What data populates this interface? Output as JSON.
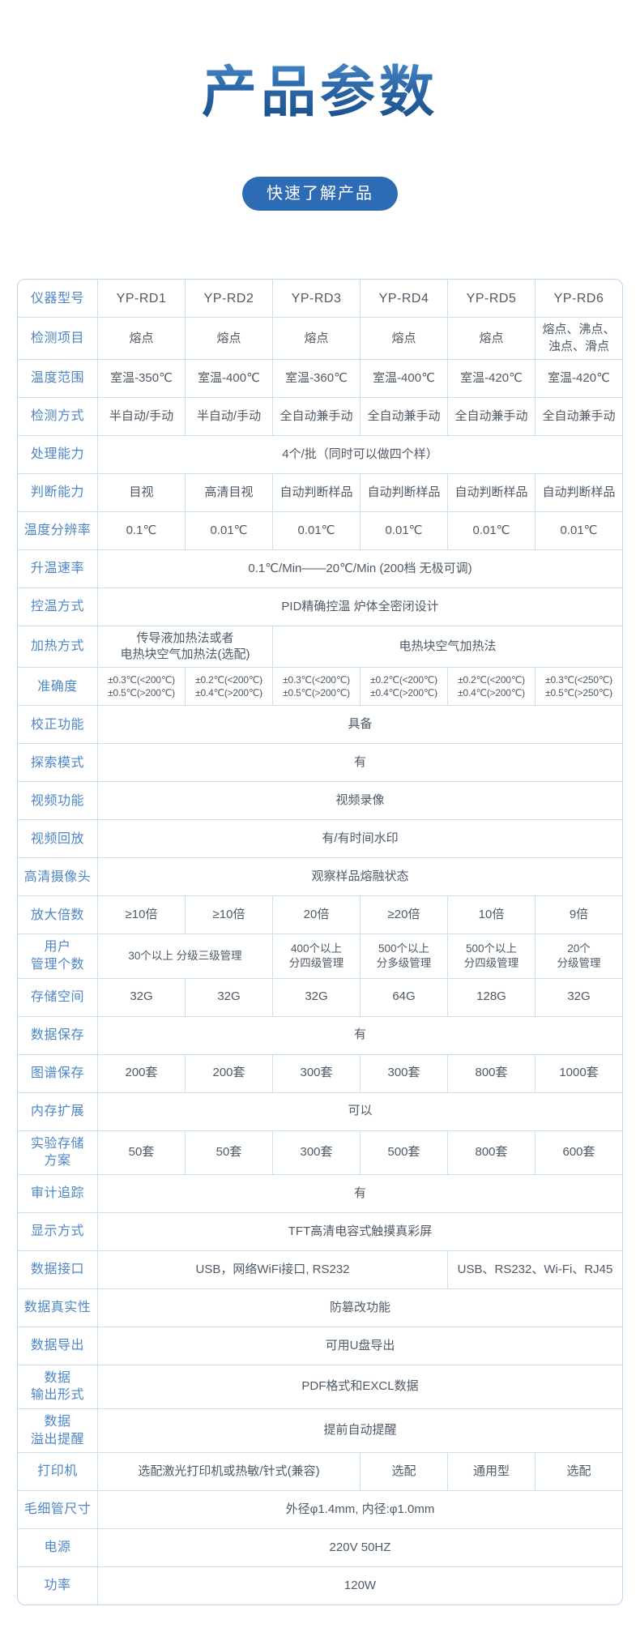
{
  "page": {
    "title": "产品参数",
    "badge": "快速了解产品"
  },
  "colors": {
    "title_gradient_top": "#4a8cc9",
    "title_gradient_bottom": "#174a85",
    "badge_background": "#2d6cb4",
    "badge_text": "#ffffff",
    "table_border": "#c9dff2",
    "label_text": "#4e86c4",
    "value_text": "#4e5a66"
  },
  "table": {
    "rows": [
      {
        "label": "仪器型号",
        "cls": "hdr",
        "cells": [
          {
            "t": "YP-RD1"
          },
          {
            "t": "YP-RD2"
          },
          {
            "t": "YP-RD3"
          },
          {
            "t": "YP-RD4"
          },
          {
            "t": "YP-RD5"
          },
          {
            "t": "YP-RD6"
          }
        ]
      },
      {
        "label": "检测项目",
        "cells": [
          {
            "t": "熔点"
          },
          {
            "t": "熔点"
          },
          {
            "t": "熔点"
          },
          {
            "t": "熔点"
          },
          {
            "t": "熔点"
          },
          {
            "t": "熔点、沸点、\n浊点、滑点"
          }
        ]
      },
      {
        "label": "温度范围",
        "cells": [
          {
            "t": "室温-350℃"
          },
          {
            "t": "室温-400℃"
          },
          {
            "t": "室温-360℃"
          },
          {
            "t": "室温-400℃"
          },
          {
            "t": "室温-420℃"
          },
          {
            "t": "室温-420℃"
          }
        ]
      },
      {
        "label": "检测方式",
        "cells": [
          {
            "t": "半自动/手动"
          },
          {
            "t": "半自动/手动"
          },
          {
            "t": "全自动兼手动"
          },
          {
            "t": "全自动兼手动"
          },
          {
            "t": "全自动兼手动"
          },
          {
            "t": "全自动兼手动"
          }
        ]
      },
      {
        "label": "处理能力",
        "cells": [
          {
            "t": "4个/批（同时可以做四个样）",
            "s": 6
          }
        ]
      },
      {
        "label": "判断能力",
        "cells": [
          {
            "t": "目视"
          },
          {
            "t": "高清目视"
          },
          {
            "t": "自动判断样品"
          },
          {
            "t": "自动判断样品"
          },
          {
            "t": "自动判断样品"
          },
          {
            "t": "自动判断样品"
          }
        ]
      },
      {
        "label": "温度分辨率",
        "cells": [
          {
            "t": "0.1℃"
          },
          {
            "t": "0.01℃"
          },
          {
            "t": "0.01℃"
          },
          {
            "t": "0.01℃"
          },
          {
            "t": "0.01℃"
          },
          {
            "t": "0.01℃"
          }
        ]
      },
      {
        "label": "升温速率",
        "cells": [
          {
            "t": "0.1℃/Min——20℃/Min (200档 无极可调)",
            "s": 6
          }
        ]
      },
      {
        "label": "控温方式",
        "cells": [
          {
            "t": "PID精确控温 炉体全密闭设计",
            "s": 6
          }
        ]
      },
      {
        "label": "加热方式",
        "cells": [
          {
            "t": "传导液加热法或者\n电热块空气加热法(选配)",
            "s": 2
          },
          {
            "t": "电热块空气加热法",
            "s": 4
          }
        ]
      },
      {
        "label": "准确度",
        "cls": "small",
        "cells": [
          {
            "t": "±0.3℃(<200℃)\n±0.5℃(>200℃)"
          },
          {
            "t": "±0.2℃(<200℃)\n±0.4℃(>200℃)"
          },
          {
            "t": "±0.3℃(<200℃)\n±0.5℃(>200℃)"
          },
          {
            "t": "±0.2℃(<200℃)\n±0.4℃(>200℃)"
          },
          {
            "t": "±0.2℃(<200℃)\n±0.4℃(>200℃)"
          },
          {
            "t": "±0.3℃(<250℃)\n±0.5℃(>250℃)"
          }
        ]
      },
      {
        "label": "校正功能",
        "cells": [
          {
            "t": "具备",
            "s": 6
          }
        ]
      },
      {
        "label": "探索模式",
        "cells": [
          {
            "t": "有",
            "s": 6
          }
        ]
      },
      {
        "label": "视频功能",
        "cells": [
          {
            "t": "视频录像",
            "s": 6
          }
        ]
      },
      {
        "label": "视频回放",
        "cells": [
          {
            "t": "有/有时间水印",
            "s": 6
          }
        ]
      },
      {
        "label": "高清摄像头",
        "cells": [
          {
            "t": "观察样品熔融状态",
            "s": 6
          }
        ]
      },
      {
        "label": "放大倍数",
        "cells": [
          {
            "t": "≥10倍"
          },
          {
            "t": "≥10倍"
          },
          {
            "t": "20倍"
          },
          {
            "t": "≥20倍"
          },
          {
            "t": "10倍"
          },
          {
            "t": "9倍"
          }
        ]
      },
      {
        "label": "用户\n管理个数",
        "cls": "mid",
        "cells": [
          {
            "t": "30个以上 分级三级管理",
            "s": 2
          },
          {
            "t": "400个以上\n分四级管理"
          },
          {
            "t": "500个以上\n分多级管理"
          },
          {
            "t": "500个以上\n分四级管理"
          },
          {
            "t": "20个\n分级管理"
          }
        ]
      },
      {
        "label": "存储空间",
        "cells": [
          {
            "t": "32G"
          },
          {
            "t": "32G"
          },
          {
            "t": "32G"
          },
          {
            "t": "64G"
          },
          {
            "t": "128G"
          },
          {
            "t": "32G"
          }
        ]
      },
      {
        "label": "数据保存",
        "cells": [
          {
            "t": "有",
            "s": 6
          }
        ]
      },
      {
        "label": "图谱保存",
        "cells": [
          {
            "t": "200套"
          },
          {
            "t": "200套"
          },
          {
            "t": "300套"
          },
          {
            "t": "300套"
          },
          {
            "t": "800套"
          },
          {
            "t": "1000套"
          }
        ]
      },
      {
        "label": "内存扩展",
        "cells": [
          {
            "t": "可以",
            "s": 6
          }
        ]
      },
      {
        "label": "实验存储\n方案",
        "cells": [
          {
            "t": "50套"
          },
          {
            "t": "50套"
          },
          {
            "t": "300套"
          },
          {
            "t": "500套"
          },
          {
            "t": "800套"
          },
          {
            "t": "600套"
          }
        ]
      },
      {
        "label": "审计追踪",
        "cells": [
          {
            "t": "有",
            "s": 6
          }
        ]
      },
      {
        "label": "显示方式",
        "cells": [
          {
            "t": "TFT高清电容式触摸真彩屏",
            "s": 6
          }
        ]
      },
      {
        "label": "数据接口",
        "cells": [
          {
            "t": "USB，网络WiFi接口, RS232",
            "s": 4
          },
          {
            "t": "USB、RS232、Wi-Fi、RJ45",
            "s": 2
          }
        ]
      },
      {
        "label": "数据真实性",
        "cells": [
          {
            "t": "防篡改功能",
            "s": 6
          }
        ]
      },
      {
        "label": "数据导出",
        "cells": [
          {
            "t": "可用U盘导出",
            "s": 6
          }
        ]
      },
      {
        "label": "数据\n输出形式",
        "cells": [
          {
            "t": "PDF格式和EXCL数据",
            "s": 6
          }
        ]
      },
      {
        "label": "数据\n溢出提醒",
        "cells": [
          {
            "t": "提前自动提醒",
            "s": 6
          }
        ]
      },
      {
        "label": "打印机",
        "cells": [
          {
            "t": "选配激光打印机或热敏/针式(兼容)",
            "s": 3
          },
          {
            "t": "选配"
          },
          {
            "t": "通用型"
          },
          {
            "t": "选配"
          }
        ]
      },
      {
        "label": "毛细管尺寸",
        "cells": [
          {
            "t": "外径φ1.4mm, 内径:φ1.0mm",
            "s": 6
          }
        ]
      },
      {
        "label": "电源",
        "cells": [
          {
            "t": "220V 50HZ",
            "s": 6
          }
        ]
      },
      {
        "label": "功率",
        "cells": [
          {
            "t": "120W",
            "s": 6
          }
        ]
      }
    ]
  }
}
